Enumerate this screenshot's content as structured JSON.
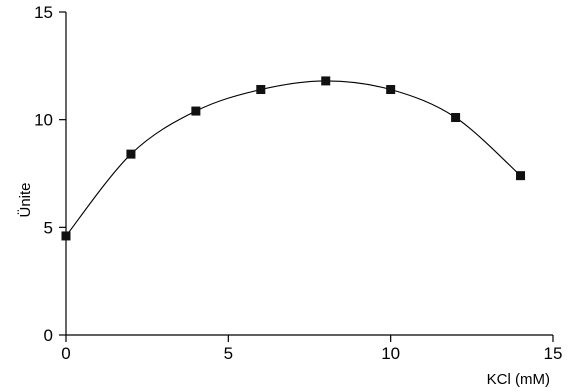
{
  "chart_data": {
    "type": "line",
    "xlabel": "KCl (mM)",
    "ylabel": "Ünite",
    "xlim": [
      0,
      15
    ],
    "ylim": [
      0,
      15
    ],
    "x_ticks": [
      0,
      5,
      10,
      15
    ],
    "y_ticks": [
      0,
      5,
      10,
      15
    ],
    "grid": false,
    "series": [
      {
        "x": [
          0,
          2,
          4,
          6,
          8,
          10,
          12,
          14
        ],
        "y": [
          4.6,
          8.4,
          10.4,
          11.4,
          11.8,
          11.4,
          10.1,
          7.4
        ],
        "marker": "square",
        "color": "#111111"
      }
    ]
  }
}
